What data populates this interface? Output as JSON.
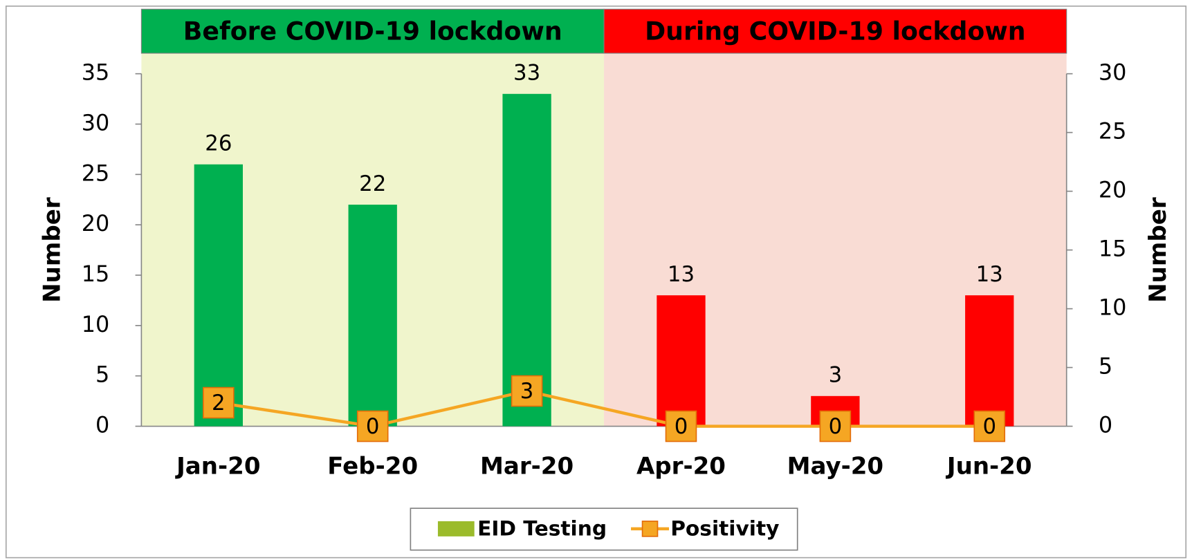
{
  "chart_data": {
    "type": "bar_line",
    "regions": [
      {
        "label": "Before COVID-19 lockdown",
        "color": "#00b050",
        "background": "#f0f5cc"
      },
      {
        "label": "During COVID-19 lockdown",
        "color": "#ff0000",
        "background": "#f9dcd4"
      }
    ],
    "categories": [
      "Jan-20",
      "Feb-20",
      "Mar-20",
      "Apr-20",
      "May-20",
      "Jun-20"
    ],
    "series": [
      {
        "name": "EID Testing",
        "type": "bar",
        "color": "#9bbb2b",
        "colors": [
          "#00b050",
          "#00b050",
          "#00b050",
          "#ff0000",
          "#ff0000",
          "#ff0000"
        ],
        "values": [
          26,
          22,
          33,
          13,
          3,
          13
        ]
      },
      {
        "name": "Positivity",
        "type": "line",
        "axis": "y2",
        "color": "#f5a623",
        "values": [
          2,
          0,
          3,
          0,
          0,
          0
        ]
      }
    ],
    "ylabel": "Number",
    "y2label": "Number",
    "ylim": [
      0,
      35
    ],
    "yticks": [
      0,
      5,
      10,
      15,
      20,
      25,
      30,
      35
    ],
    "y2lim": [
      0,
      30
    ],
    "y2ticks": [
      0,
      5,
      10,
      15,
      20,
      25,
      30
    ],
    "legend": "bottom"
  }
}
